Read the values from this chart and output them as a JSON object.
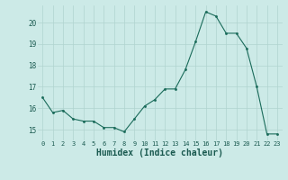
{
  "x": [
    0,
    1,
    2,
    3,
    4,
    5,
    6,
    7,
    8,
    9,
    10,
    11,
    12,
    13,
    14,
    15,
    16,
    17,
    18,
    19,
    20,
    21,
    22,
    23
  ],
  "y": [
    16.5,
    15.8,
    15.9,
    15.5,
    15.4,
    15.4,
    15.1,
    15.1,
    14.9,
    15.5,
    16.1,
    16.4,
    16.9,
    16.9,
    17.8,
    19.1,
    20.5,
    20.3,
    19.5,
    19.5,
    18.8,
    17.0,
    14.8,
    14.8
  ],
  "line_color": "#1a6b5a",
  "marker_color": "#1a6b5a",
  "bg_color": "#cceae7",
  "grid_color": "#b0d4d0",
  "xlabel": "Humidex (Indice chaleur)",
  "ylim": [
    14.5,
    20.8
  ],
  "yticks": [
    15,
    16,
    17,
    18,
    19,
    20
  ],
  "xticks": [
    0,
    1,
    2,
    3,
    4,
    5,
    6,
    7,
    8,
    9,
    10,
    11,
    12,
    13,
    14,
    15,
    16,
    17,
    18,
    19,
    20,
    21,
    22,
    23
  ]
}
